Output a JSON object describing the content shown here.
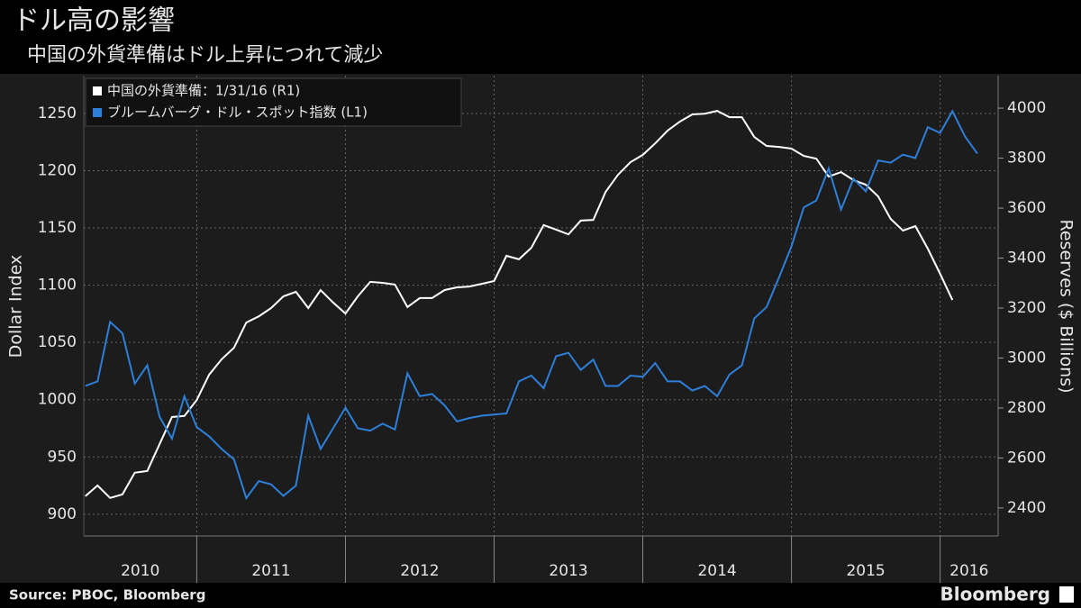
{
  "chart_data": {
    "type": "line",
    "title": "ドル高の影響",
    "subtitle": "中国の外貨準備はドル上昇につれて減少",
    "y_label": "Dollar Index",
    "y2_label": "Reserves ($ Billions)",
    "source": "Source: PBOC, Bloomberg",
    "brand": "Bloomberg",
    "x": [
      2010.25,
      2010.333,
      2010.417,
      2010.5,
      2010.583,
      2010.667,
      2010.75,
      2010.833,
      2010.917,
      2011,
      2011.083,
      2011.167,
      2011.25,
      2011.333,
      2011.417,
      2011.5,
      2011.583,
      2011.667,
      2011.75,
      2011.833,
      2011.917,
      2012,
      2012.083,
      2012.167,
      2012.25,
      2012.333,
      2012.417,
      2012.5,
      2012.583,
      2012.667,
      2012.75,
      2012.833,
      2012.917,
      2013,
      2013.083,
      2013.167,
      2013.25,
      2013.333,
      2013.417,
      2013.5,
      2013.583,
      2013.667,
      2013.75,
      2013.833,
      2013.917,
      2014,
      2014.083,
      2014.167,
      2014.25,
      2014.333,
      2014.417,
      2014.5,
      2014.583,
      2014.667,
      2014.75,
      2014.833,
      2014.917,
      2015,
      2015.083,
      2015.167,
      2015.25,
      2015.333,
      2015.417,
      2015.5,
      2015.583,
      2015.667,
      2015.75,
      2015.833,
      2015.917,
      2016,
      2016.083,
      2016.167,
      2016.25
    ],
    "xlim": [
      2010.24,
      2016.39
    ],
    "xticks": [
      2010,
      2011,
      2012,
      2013,
      2014,
      2015,
      2016
    ],
    "ylim": [
      881,
      1283
    ],
    "yticks": [
      900,
      950,
      1000,
      1050,
      1100,
      1150,
      1200,
      1250
    ],
    "y2lim": [
      2288,
      4130
    ],
    "y2ticks": [
      2400,
      2600,
      2800,
      3000,
      3200,
      3400,
      3600,
      3800,
      4000
    ],
    "grid": true,
    "legend": "top-left",
    "series": [
      {
        "name": "中国の外貨準備：1/31/16 (R1)",
        "color": "#ffffff",
        "axis": "y2",
        "values": [
          2447,
          2490,
          2440,
          2454,
          2541,
          2548,
          2656,
          2764,
          2768,
          2832,
          2933,
          2995,
          3041,
          3142,
          3167,
          3200,
          3247,
          3265,
          3200,
          3272,
          3222,
          3178,
          3247,
          3305,
          3301,
          3294,
          3204,
          3240,
          3240,
          3272,
          3283,
          3286,
          3297,
          3308,
          3409,
          3395,
          3441,
          3532,
          3514,
          3495,
          3550,
          3553,
          3665,
          3733,
          3784,
          3813,
          3859,
          3910,
          3946,
          3975,
          3978,
          3989,
          3964,
          3964,
          3885,
          3849,
          3845,
          3838,
          3809,
          3798,
          3726,
          3744,
          3712,
          3694,
          3647,
          3557,
          3510,
          3528,
          3438,
          3337,
          3232,
          null,
          null
        ]
      },
      {
        "name": "ブルームバーグ・ドル・スポット指数 (L1)",
        "color": "#2d7fd9",
        "values": [
          1012,
          1016,
          1068,
          1058,
          1014,
          1030,
          985,
          966,
          1003,
          976,
          968,
          957,
          948,
          914,
          929,
          926,
          916,
          925,
          986,
          957,
          975,
          993,
          975,
          973,
          979,
          974,
          1023,
          1003,
          1005,
          995,
          981,
          984,
          986,
          987,
          988,
          1016,
          1021,
          1010,
          1038,
          1041,
          1026,
          1035,
          1012,
          1012,
          1021,
          1020,
          1032,
          1016,
          1016,
          1008,
          1012,
          1003,
          1022,
          1030,
          1071,
          1081,
          1107,
          1134,
          1168,
          1174,
          1202,
          1166,
          1193,
          1182,
          1209,
          1207,
          1214,
          1211,
          1238,
          1233,
          1252,
          1230,
          1215
        ]
      }
    ]
  }
}
